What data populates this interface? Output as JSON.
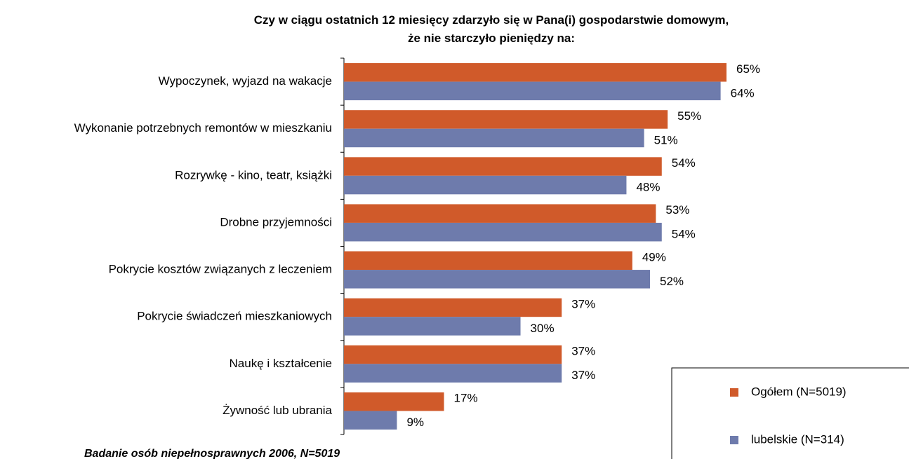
{
  "chart_data": {
    "type": "bar",
    "orientation": "horizontal",
    "title": "Czy w ciągu ostatnich 12 miesięcy zdarzyło się w Pana(i) gospodarstwie domowym,\nże nie starczyło pieniędzy na:",
    "categories": [
      "Wypoczynek, wyjazd na wakacje",
      "Wykonanie potrzebnych remontów w mieszkaniu",
      "Rozrywkę - kino, teatr, książki",
      "Drobne przyjemności",
      "Pokrycie kosztów związanych z leczeniem",
      "Pokrycie świadczeń mieszkaniowych",
      "Naukę i kształcenie",
      "Żywność lub ubrania"
    ],
    "series": [
      {
        "name": "Ogółem (N=5019)",
        "color": "#d05a2a",
        "values": [
          65,
          55,
          54,
          53,
          49,
          37,
          37,
          17
        ],
        "value_labels": [
          "65%",
          "55%",
          "54%",
          "53%",
          "49%",
          "37%",
          "37%",
          "17%"
        ]
      },
      {
        "name": "lubelskie  (N=314)",
        "color": "#6e7bac",
        "values": [
          64,
          51,
          48,
          54,
          52,
          30,
          37,
          9
        ],
        "value_labels": [
          "64%",
          "51%",
          "48%",
          "54%",
          "52%",
          "30%",
          "37%",
          "9%"
        ]
      }
    ],
    "note": "Badanie osób niepełnosprawnych 2006, N=5019"
  }
}
